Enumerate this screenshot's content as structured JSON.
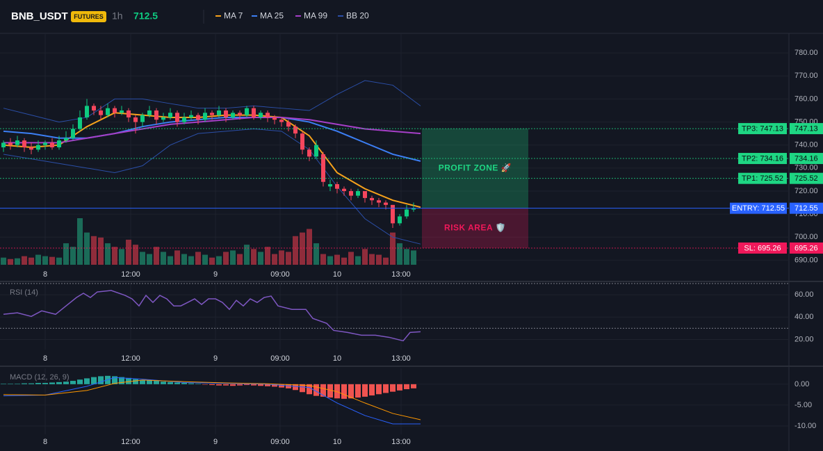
{
  "header": {
    "symbol": "BNB_USDT",
    "badge": "FUTURES",
    "interval": "1h",
    "price": 712.5
  },
  "chart_data": [
    {
      "type": "candlestick",
      "xlim": [
        -0.5,
        113
      ],
      "ylim": [
        688,
        788.5
      ],
      "grid": true,
      "yticks": [
        {
          "value": 690,
          "label": "690.00"
        },
        {
          "value": 700,
          "label": "700.00"
        },
        {
          "value": 710,
          "label": "710.00"
        },
        {
          "value": 720,
          "label": "720.00"
        },
        {
          "value": 730,
          "label": "730.00"
        },
        {
          "value": 740,
          "label": "740.00"
        },
        {
          "value": 750,
          "label": "750.00"
        },
        {
          "value": 760,
          "label": "760.00"
        },
        {
          "value": 770,
          "label": "770.00"
        },
        {
          "value": 780,
          "label": "780.00"
        }
      ],
      "xticks": [
        {
          "value": 6,
          "label": "8"
        },
        {
          "value": 18.3,
          "label": "12:00"
        },
        {
          "value": 30.5,
          "label": "9"
        },
        {
          "value": 39.8,
          "label": "09:00"
        },
        {
          "value": 48,
          "label": "10"
        },
        {
          "value": 57.2,
          "label": "13:00"
        }
      ],
      "up_color": "#0ecb81",
      "down_color": "#f6465d",
      "volume_up_color": "#1b6b58",
      "volume_down_color": "#8f2c3b",
      "open": [
        739,
        741,
        740,
        742,
        739,
        738,
        740,
        741,
        739,
        742,
        743,
        747,
        752,
        757,
        755,
        753,
        756,
        754,
        755,
        752,
        750,
        753,
        755,
        751,
        752,
        754,
        750,
        752,
        753,
        751,
        754,
        753,
        755,
        752,
        754,
        753,
        756,
        752,
        754,
        752,
        751,
        750,
        748,
        745,
        738,
        735,
        736,
        722,
        723,
        721,
        720,
        718,
        720,
        717,
        716,
        715,
        714,
        706,
        709,
        712
      ],
      "high": [
        742,
        743,
        744,
        743,
        741,
        742,
        742,
        743,
        744,
        746,
        749,
        755,
        760,
        758,
        757,
        758,
        757,
        757,
        756,
        753,
        754,
        757,
        756,
        754,
        756,
        755,
        754,
        755,
        754,
        756,
        755,
        757,
        756,
        755,
        755,
        757,
        757,
        755,
        755,
        753,
        752,
        751,
        749,
        746,
        739,
        742,
        737,
        725,
        724,
        722,
        721,
        721,
        720,
        718,
        717,
        716,
        714,
        710,
        714,
        715
      ],
      "low": [
        737,
        738,
        739,
        737,
        736,
        737,
        738,
        738,
        738,
        741,
        742,
        746,
        751,
        753,
        751,
        752,
        752,
        753,
        750,
        745,
        748,
        752,
        749,
        750,
        751,
        748,
        749,
        751,
        749,
        750,
        751,
        752,
        750,
        751,
        751,
        752,
        751,
        751,
        750,
        749,
        748,
        746,
        743,
        736,
        733,
        734,
        722,
        720,
        719,
        718,
        716,
        717,
        715,
        714,
        713,
        712,
        704,
        705,
        708,
        711
      ],
      "close": [
        741,
        740,
        742,
        739,
        738,
        740,
        741,
        739,
        742,
        743,
        747,
        752,
        757,
        755,
        753,
        756,
        754,
        755,
        752,
        750,
        753,
        755,
        751,
        752,
        754,
        750,
        752,
        753,
        751,
        754,
        753,
        755,
        752,
        754,
        753,
        756,
        752,
        754,
        752,
        751,
        750,
        748,
        745,
        738,
        735,
        740,
        724,
        723,
        721,
        720,
        718,
        720,
        717,
        716,
        715,
        714,
        706,
        709,
        712,
        712.5
      ],
      "volume": [
        10,
        8,
        9,
        12,
        10,
        14,
        12,
        11,
        10,
        30,
        25,
        65,
        45,
        40,
        38,
        30,
        25,
        22,
        35,
        28,
        18,
        15,
        25,
        18,
        12,
        20,
        15,
        12,
        18,
        14,
        10,
        12,
        18,
        20,
        15,
        28,
        22,
        18,
        25,
        15,
        20,
        18,
        40,
        45,
        50,
        30,
        15,
        12,
        14,
        10,
        18,
        12,
        22,
        15,
        14,
        10,
        45,
        30,
        22,
        20
      ],
      "lines": [
        {
          "name": "MA 7",
          "color": "#f7a21b",
          "x": [
            0,
            4,
            8,
            12,
            16,
            20,
            24,
            28,
            32,
            36,
            40,
            44,
            48,
            52,
            56,
            60
          ],
          "values": [
            740,
            739,
            740,
            748,
            754,
            753,
            752,
            752,
            753,
            753,
            752,
            744,
            728,
            721,
            716,
            713
          ]
        },
        {
          "name": "MA 25",
          "color": "#3c7ff5",
          "x": [
            0,
            4,
            8,
            12,
            16,
            20,
            24,
            28,
            32,
            36,
            40,
            44,
            48,
            52,
            56,
            60
          ],
          "values": [
            746,
            745,
            743,
            743,
            745,
            748,
            750,
            751,
            752,
            752,
            752,
            750,
            746,
            741,
            736,
            733
          ]
        },
        {
          "name": "MA 99",
          "color": "#a63fc8",
          "x": [
            0,
            4,
            8,
            12,
            16,
            20,
            24,
            28,
            32,
            36,
            40,
            44,
            48,
            52,
            56,
            60
          ],
          "values": [
            741,
            741,
            741,
            743,
            745,
            747,
            749,
            750,
            751,
            752,
            752,
            751,
            749,
            747,
            746,
            745
          ]
        },
        {
          "name": "BB 20",
          "color": "#2b4fa8",
          "x": [
            0,
            4,
            8,
            12,
            16,
            20,
            24,
            28,
            32,
            36,
            40,
            44,
            48,
            52,
            56,
            60
          ],
          "upper": [
            756,
            753,
            750,
            752,
            760,
            760,
            758,
            756,
            756,
            757,
            756,
            755,
            762,
            768,
            766,
            757
          ],
          "lower": [
            736,
            734,
            732,
            730,
            728,
            731,
            740,
            745,
            746,
            747,
            746,
            738,
            722,
            708,
            700,
            697
          ]
        }
      ],
      "levels": [
        {
          "label": "TP3: 747.13",
          "value": 747.13,
          "color": "#1ed683",
          "text_color": "#0b0e11"
        },
        {
          "label": "TP2: 734.16",
          "value": 734.16,
          "color": "#1ed683",
          "text_color": "#0b0e11"
        },
        {
          "label": "TP1: 725.52",
          "value": 725.52,
          "color": "#1ed683",
          "text_color": "#0b0e11"
        },
        {
          "label": "ENTRY: 712.55",
          "value": 712.55,
          "color": "#2962ff",
          "text_color": "#ffffff"
        },
        {
          "label": "SL: 695.26",
          "value": 695.26,
          "color": "#f0185a",
          "text_color": "#ffffff"
        }
      ],
      "zones": [
        {
          "label": "PROFIT ZONE 🚀",
          "color": "#1ed683"
        },
        {
          "label": "RISK AREA 🛡️",
          "color": "#f0185a"
        }
      ]
    },
    {
      "type": "line",
      "title": "RSI (14)",
      "xlim": [
        -0.5,
        113
      ],
      "ylim": [
        11,
        70
      ],
      "grid": true,
      "yticks": [
        {
          "value": 20,
          "label": "20.00"
        },
        {
          "value": 40,
          "label": "40.00"
        },
        {
          "value": 60,
          "label": "60.00"
        }
      ],
      "xticks": [
        {
          "value": 6,
          "label": "8"
        },
        {
          "value": 18.3,
          "label": "12:00"
        },
        {
          "value": 30.5,
          "label": "9"
        },
        {
          "value": 39.8,
          "label": "09:00"
        },
        {
          "value": 48,
          "label": "10"
        },
        {
          "value": 57.2,
          "label": "13:00"
        }
      ],
      "levels": [
        70,
        30
      ],
      "series": [
        {
          "color": "#7e57c2",
          "x": [
            0,
            2,
            4,
            5.5,
            7.5,
            9,
            10.5,
            11.5,
            12.5,
            13.5,
            15.5,
            17.5,
            18.5,
            19.5,
            20.5,
            21.5,
            22.5,
            23.5,
            24.5,
            25.5,
            26.5,
            27.5,
            28.5,
            29.5,
            30.5,
            31.5,
            32.5,
            33.5,
            34.5,
            35.5,
            36.5,
            37.5,
            38.5,
            39.5,
            41.5,
            43.5,
            44.5,
            46.5,
            47.5,
            49.5,
            51.5,
            53.5,
            55.5,
            57.5,
            58.5,
            60
          ],
          "values": [
            42.5,
            43.8,
            40.6,
            45.6,
            42.5,
            50,
            57.5,
            61.3,
            57.5,
            62.5,
            63.8,
            59.4,
            56.3,
            50,
            59.4,
            53.1,
            59.4,
            56.3,
            50,
            50,
            53.1,
            56.3,
            51.3,
            56.3,
            56.3,
            53.1,
            46.9,
            55,
            50,
            56.3,
            53.1,
            57.5,
            58.8,
            50,
            46.9,
            46.9,
            38.8,
            34.4,
            28.1,
            26.3,
            23.8,
            23.8,
            21.9,
            18.8,
            26.3,
            26.9
          ]
        }
      ]
    },
    {
      "type": "macd",
      "title": "MACD (12, 26, 9)",
      "xlim": [
        -0.5,
        113
      ],
      "ylim": [
        -12,
        3.8
      ],
      "grid": true,
      "yticks": [
        {
          "value": -10,
          "label": "-10.00"
        },
        {
          "value": -5,
          "label": "-5.00"
        },
        {
          "value": 0,
          "label": "0.00"
        }
      ],
      "xticks": [
        {
          "value": 6,
          "label": "8"
        },
        {
          "value": 18.3,
          "label": "12:00"
        },
        {
          "value": 30.5,
          "label": "9"
        },
        {
          "value": 39.8,
          "label": "09:00"
        },
        {
          "value": 48,
          "label": "10"
        },
        {
          "value": 57.2,
          "label": "13:00"
        }
      ],
      "histogram": {
        "up_color": "#26a69a",
        "down_color": "#ef5350",
        "values": [
          0.1,
          0.1,
          0.1,
          0.2,
          0.2,
          0.3,
          0.3,
          0.4,
          0.5,
          0.6,
          0.8,
          1.1,
          1.4,
          1.7,
          1.9,
          2.0,
          1.9,
          1.7,
          1.5,
          1.2,
          1.0,
          0.9,
          0.8,
          0.6,
          0.5,
          0.4,
          0.3,
          0.2,
          0.1,
          -0.1,
          -0.2,
          -0.3,
          -0.3,
          -0.4,
          -0.3,
          -0.2,
          -0.3,
          -0.4,
          -0.5,
          -0.6,
          -0.8,
          -1.0,
          -1.4,
          -1.9,
          -2.4,
          -2.8,
          -3.0,
          -3.2,
          -3.4,
          -3.5,
          -3.4,
          -3.2,
          -3.0,
          -2.7,
          -2.4,
          -2.1,
          -1.8,
          -1.5,
          -1.2,
          -1.0
        ]
      },
      "series": [
        {
          "color": "#2962ff",
          "x": [
            0,
            6,
            12,
            16,
            20,
            26,
            32,
            38,
            44,
            48,
            52,
            56,
            60
          ],
          "values": [
            -2.8,
            -2.6,
            -0.5,
            1.6,
            1.2,
            0.4,
            0.2,
            0,
            -0.8,
            -4.5,
            -7.5,
            -9.5,
            -9.5
          ]
        },
        {
          "color": "#ff9800",
          "x": [
            0,
            6,
            12,
            16,
            20,
            26,
            32,
            38,
            44,
            48,
            52,
            56,
            60
          ],
          "values": [
            -2.5,
            -2.6,
            -1.5,
            0.2,
            1.0,
            0.6,
            0.3,
            0.1,
            -0.3,
            -1.8,
            -4.5,
            -7.0,
            -8.5
          ]
        }
      ]
    }
  ]
}
